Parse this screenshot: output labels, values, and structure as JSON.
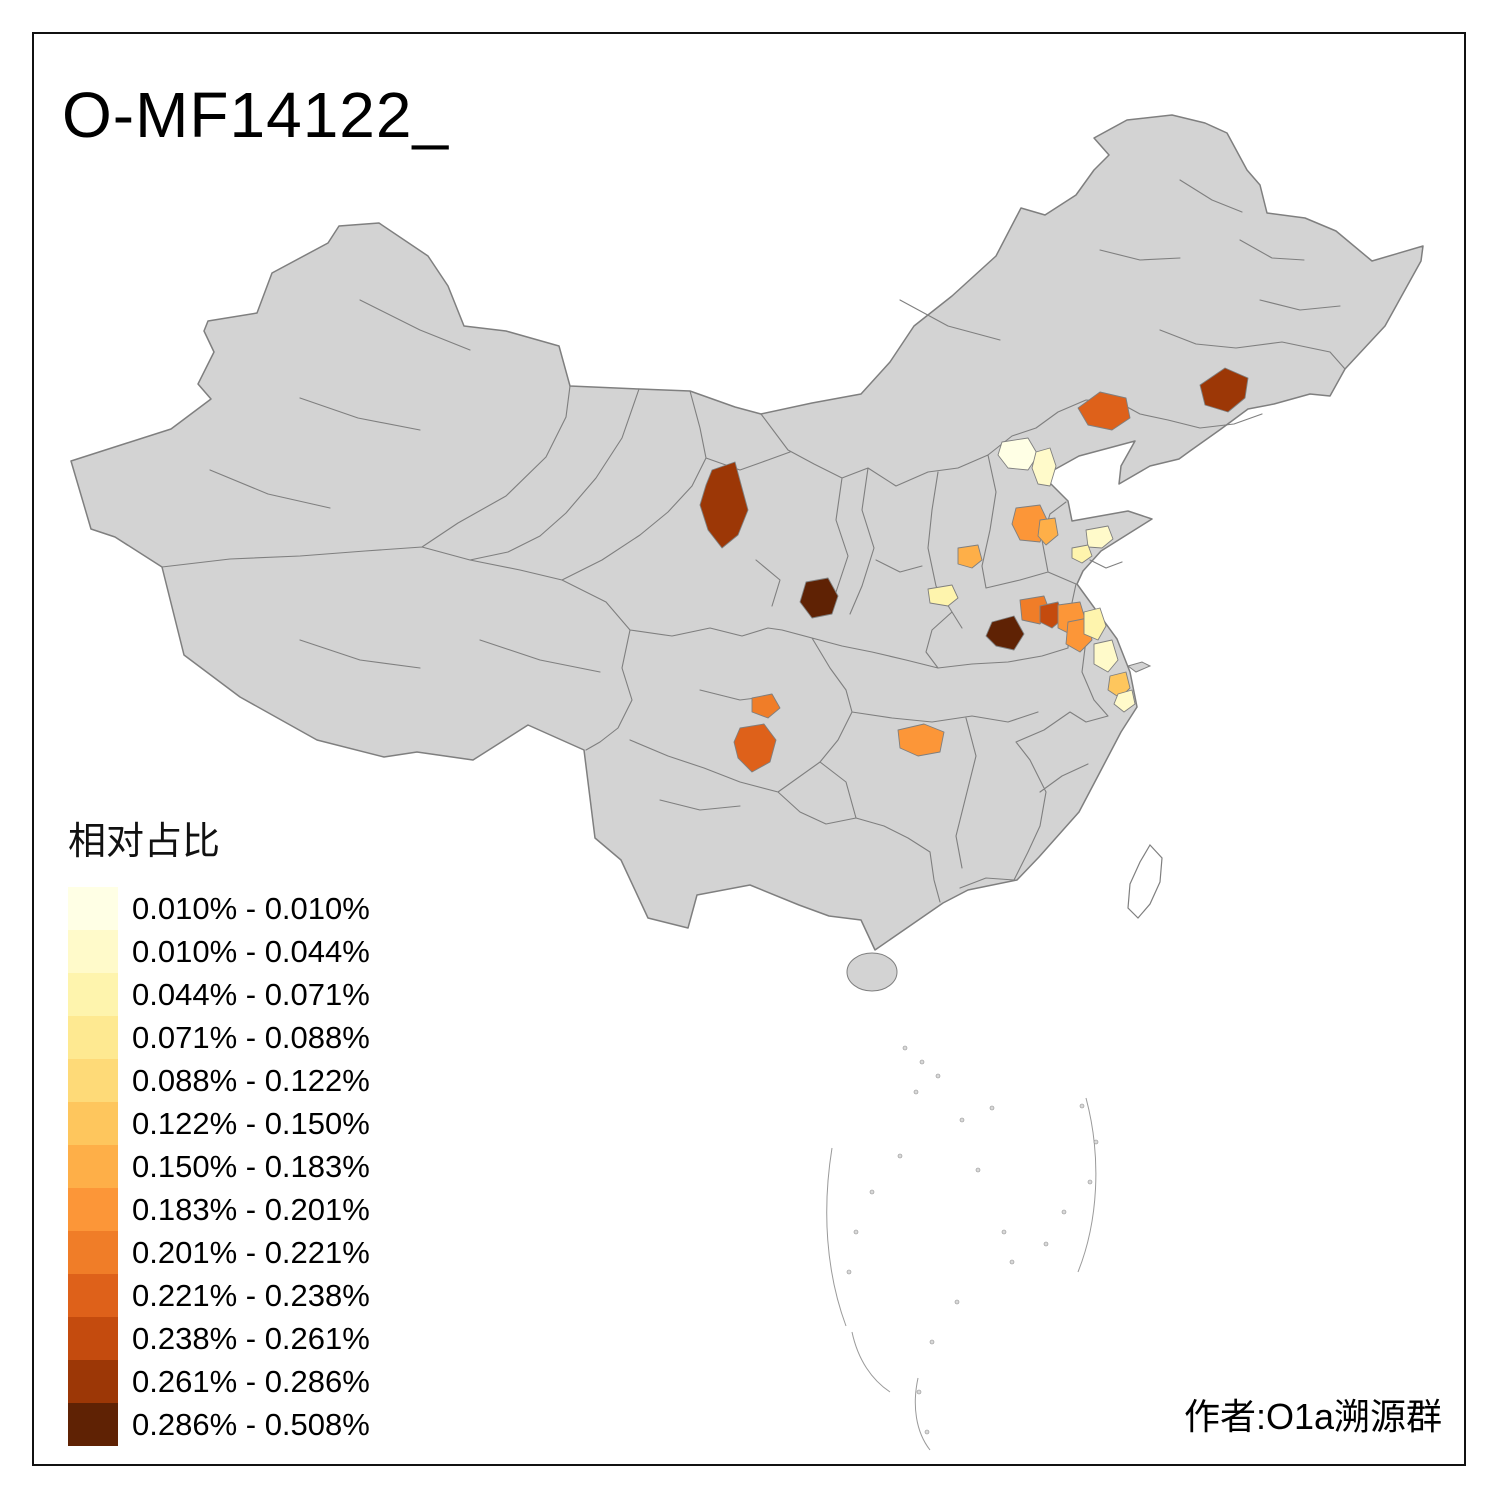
{
  "title": "O-MF14122_",
  "attribution": "作者:O1a溯源群",
  "legend": {
    "title": "相对占比",
    "bins": [
      {
        "label": "0.010% - 0.010%",
        "color": "#FFFFE5"
      },
      {
        "label": "0.010% - 0.044%",
        "color": "#FFFACA"
      },
      {
        "label": "0.044% - 0.071%",
        "color": "#FEF4AD"
      },
      {
        "label": "0.071% - 0.088%",
        "color": "#FEE991"
      },
      {
        "label": "0.088% - 0.122%",
        "color": "#FEDA78"
      },
      {
        "label": "0.122% - 0.150%",
        "color": "#FEC65D"
      },
      {
        "label": "0.150% - 0.183%",
        "color": "#FEAF48"
      },
      {
        "label": "0.183% - 0.201%",
        "color": "#FC9638"
      },
      {
        "label": "0.201% - 0.221%",
        "color": "#F07D28"
      },
      {
        "label": "0.221% - 0.238%",
        "color": "#DE611A"
      },
      {
        "label": "0.238% - 0.261%",
        "color": "#C44B0E"
      },
      {
        "label": "0.261% - 0.286%",
        "color": "#9C3706"
      },
      {
        "label": "0.286% - 0.508%",
        "color": "#5F2204"
      }
    ]
  },
  "map": {
    "base_fill": "#d3d3d3",
    "boundary_color": "#7f7f7f",
    "background": "#ffffff",
    "regions": [
      {
        "id": "northeast-dark",
        "bin": 11
      },
      {
        "id": "liaoning-west-orange",
        "bin": 9
      },
      {
        "id": "beijing-pale",
        "bin": 0
      },
      {
        "id": "tianjin-pale",
        "bin": 1
      },
      {
        "id": "shanxi-orange-a",
        "bin": 7
      },
      {
        "id": "shanxi-orange-b",
        "bin": 6
      },
      {
        "id": "gansu-dark",
        "bin": 11
      },
      {
        "id": "ningxia-darkest",
        "bin": 12
      },
      {
        "id": "shaanxi-north-orange",
        "bin": 6
      },
      {
        "id": "guanzhong-pale",
        "bin": 2
      },
      {
        "id": "shandong-pale-a",
        "bin": 1
      },
      {
        "id": "shandong-pale-b",
        "bin": 2
      },
      {
        "id": "henan-orange-a",
        "bin": 8
      },
      {
        "id": "henan-darkred",
        "bin": 10
      },
      {
        "id": "henan-orange-b",
        "bin": 7
      },
      {
        "id": "henan-darkest",
        "bin": 12
      },
      {
        "id": "jiangsu-north-orange",
        "bin": 7
      },
      {
        "id": "jiangsu-pale-a",
        "bin": 2
      },
      {
        "id": "jiangsu-pale-b",
        "bin": 1
      },
      {
        "id": "jiangsu-mid-orange",
        "bin": 5
      },
      {
        "id": "jiangsu-coast-pale",
        "bin": 1
      },
      {
        "id": "sichuan-orange-small",
        "bin": 8
      },
      {
        "id": "sichuan-orange-big",
        "bin": 9
      },
      {
        "id": "hunan-west-orange",
        "bin": 7
      }
    ]
  }
}
